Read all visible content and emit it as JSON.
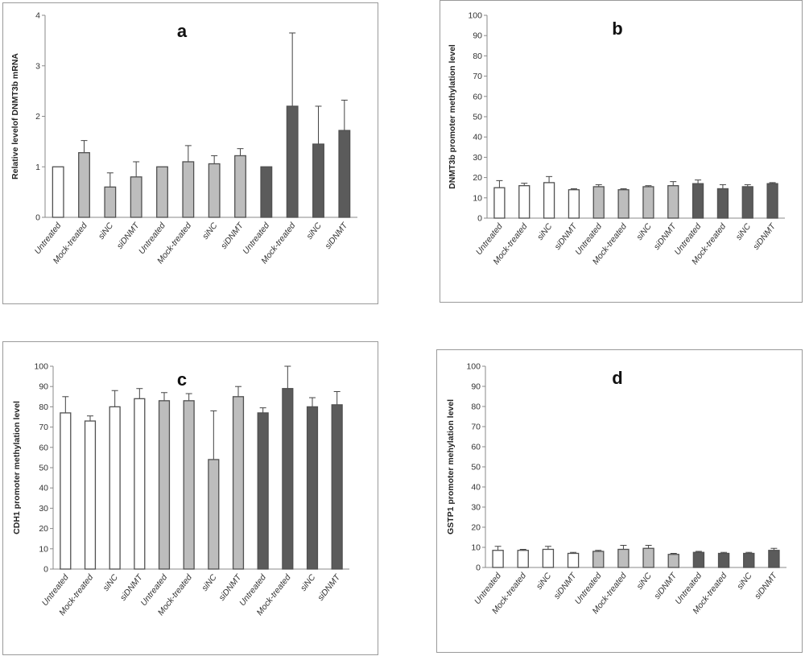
{
  "chart_data": [
    {
      "id": "a",
      "type": "bar",
      "panel_label": "a",
      "ylabel": "Relative levelof DNMT3b mRNA",
      "ylim": [
        0,
        4
      ],
      "yticks": [
        0,
        1,
        2,
        3,
        4
      ],
      "categories": [
        "Untreated",
        "Mock-treated",
        "siNC",
        "siDNMT",
        "Untreated",
        "Mock-treated",
        "siNC",
        "siDNMT",
        "Untreated",
        "Mock-treated",
        "siNC",
        "siDNMT"
      ],
      "values": [
        1.0,
        1.28,
        0.6,
        0.8,
        1.0,
        1.1,
        1.06,
        1.22,
        1.0,
        2.2,
        1.45,
        1.72
      ],
      "errors": [
        0,
        0.24,
        0.28,
        0.3,
        0,
        0.32,
        0.16,
        0.14,
        0,
        1.45,
        0.75,
        0.6
      ],
      "groups": [
        "white",
        "light",
        "light",
        "light",
        "light",
        "light",
        "light",
        "light",
        "dark",
        "dark",
        "dark",
        "dark"
      ],
      "grid": false
    },
    {
      "id": "b",
      "type": "bar",
      "panel_label": "b",
      "ylabel": "DNMT3b promoter methylation level",
      "ylim": [
        0,
        100
      ],
      "yticks": [
        0,
        10,
        20,
        30,
        40,
        50,
        60,
        70,
        80,
        90,
        100
      ],
      "categories": [
        "Untreated",
        "Mock-treated",
        "siNC",
        "siDNMT",
        "Untreated",
        "Mock-treated",
        "siNC",
        "siDNMT",
        "Untreated",
        "Mock-treated",
        "siNC",
        "siDNMT"
      ],
      "values": [
        15,
        16,
        17.5,
        14,
        15.5,
        14,
        15.5,
        16,
        17,
        14.5,
        15.5,
        17
      ],
      "errors": [
        3.5,
        1.2,
        3,
        0.5,
        1,
        0.5,
        0.5,
        2,
        1.8,
        2,
        1,
        0.5
      ],
      "groups": [
        "white",
        "white",
        "white",
        "white",
        "light",
        "light",
        "light",
        "light",
        "dark",
        "dark",
        "dark",
        "dark"
      ],
      "grid": false
    },
    {
      "id": "c",
      "type": "bar",
      "panel_label": "c",
      "ylabel": "CDH1 promoter methylation level",
      "ylim": [
        0,
        100
      ],
      "yticks": [
        0,
        10,
        20,
        30,
        40,
        50,
        60,
        70,
        80,
        90,
        100
      ],
      "categories": [
        "Untreated",
        "Mock-treated",
        "siNC",
        "siDNMT",
        "Untreated",
        "Mock-treated",
        "siNC",
        "siDNMT",
        "Untreated",
        "Mock-treated",
        "siNC",
        "siDNMT"
      ],
      "values": [
        77,
        73,
        80,
        84,
        83,
        83,
        54,
        85,
        77,
        89,
        80,
        81
      ],
      "errors": [
        8,
        2.5,
        8,
        5,
        4,
        3.5,
        24,
        5,
        2.5,
        11,
        4.5,
        6.5
      ],
      "groups": [
        "white",
        "white",
        "white",
        "white",
        "light",
        "light",
        "light",
        "light",
        "dark",
        "dark",
        "dark",
        "dark"
      ],
      "grid": false
    },
    {
      "id": "d",
      "type": "bar",
      "panel_label": "d",
      "ylabel": "GSTP1 promoter mehylation level",
      "ylim": [
        0,
        100
      ],
      "yticks": [
        0,
        10,
        20,
        30,
        40,
        50,
        60,
        70,
        80,
        90,
        100
      ],
      "categories": [
        "Untreated",
        "Mock-treated",
        "siNC",
        "siDNMT",
        "Untreated",
        "Mock-treated",
        "siNC",
        "siDNMT",
        "Untreated",
        "Mock-treated",
        "siNC",
        "siDNMT"
      ],
      "values": [
        8.5,
        8.5,
        9,
        7,
        8,
        9,
        9.5,
        6.5,
        7.5,
        7,
        7,
        8.5
      ],
      "errors": [
        2,
        0.5,
        1.5,
        0.5,
        0.5,
        2,
        1.5,
        0.5,
        0.5,
        0.5,
        0.5,
        1
      ],
      "groups": [
        "white",
        "white",
        "white",
        "white",
        "light",
        "light",
        "light",
        "light",
        "dark",
        "dark",
        "dark",
        "dark"
      ],
      "grid": false
    }
  ],
  "colors": {
    "white": "#ffffff",
    "light": "#bdbdbd",
    "dark": "#5b5b5b",
    "bar_stroke": "#505050",
    "axis": "#8a8a8a",
    "text": "#333333",
    "panel_border": "#9a9a9a"
  }
}
